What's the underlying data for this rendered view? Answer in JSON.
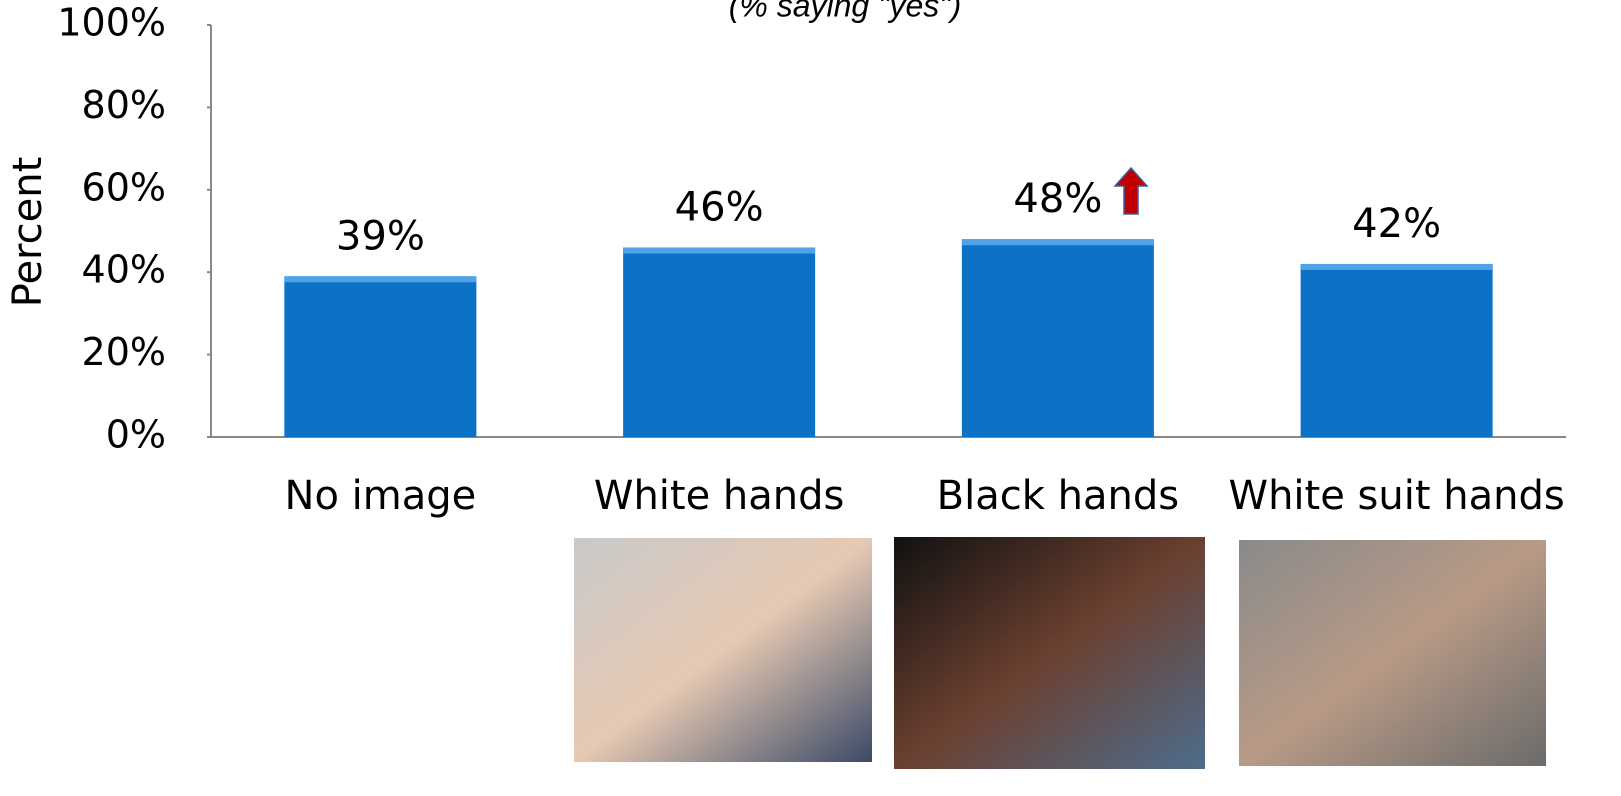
{
  "chart_data": {
    "type": "bar",
    "subtitle": "(% saying \"yes\")",
    "ylabel": "Percent",
    "categories": [
      "No image",
      "White hands",
      "Black hands",
      "White suit hands"
    ],
    "values": [
      39,
      46,
      48,
      42
    ],
    "value_labels": [
      "39%",
      "46%",
      "48%",
      "42%"
    ],
    "color": "#0b72c6",
    "ylim": [
      0,
      100
    ],
    "yticks": [
      {
        "value": 0,
        "label": "0%"
      },
      {
        "value": 20,
        "label": "20%"
      },
      {
        "value": 40,
        "label": "40%"
      },
      {
        "value": 60,
        "label": "60%"
      },
      {
        "value": 80,
        "label": "80%"
      },
      {
        "value": 100,
        "label": "100%"
      }
    ],
    "grid": false
  }
}
